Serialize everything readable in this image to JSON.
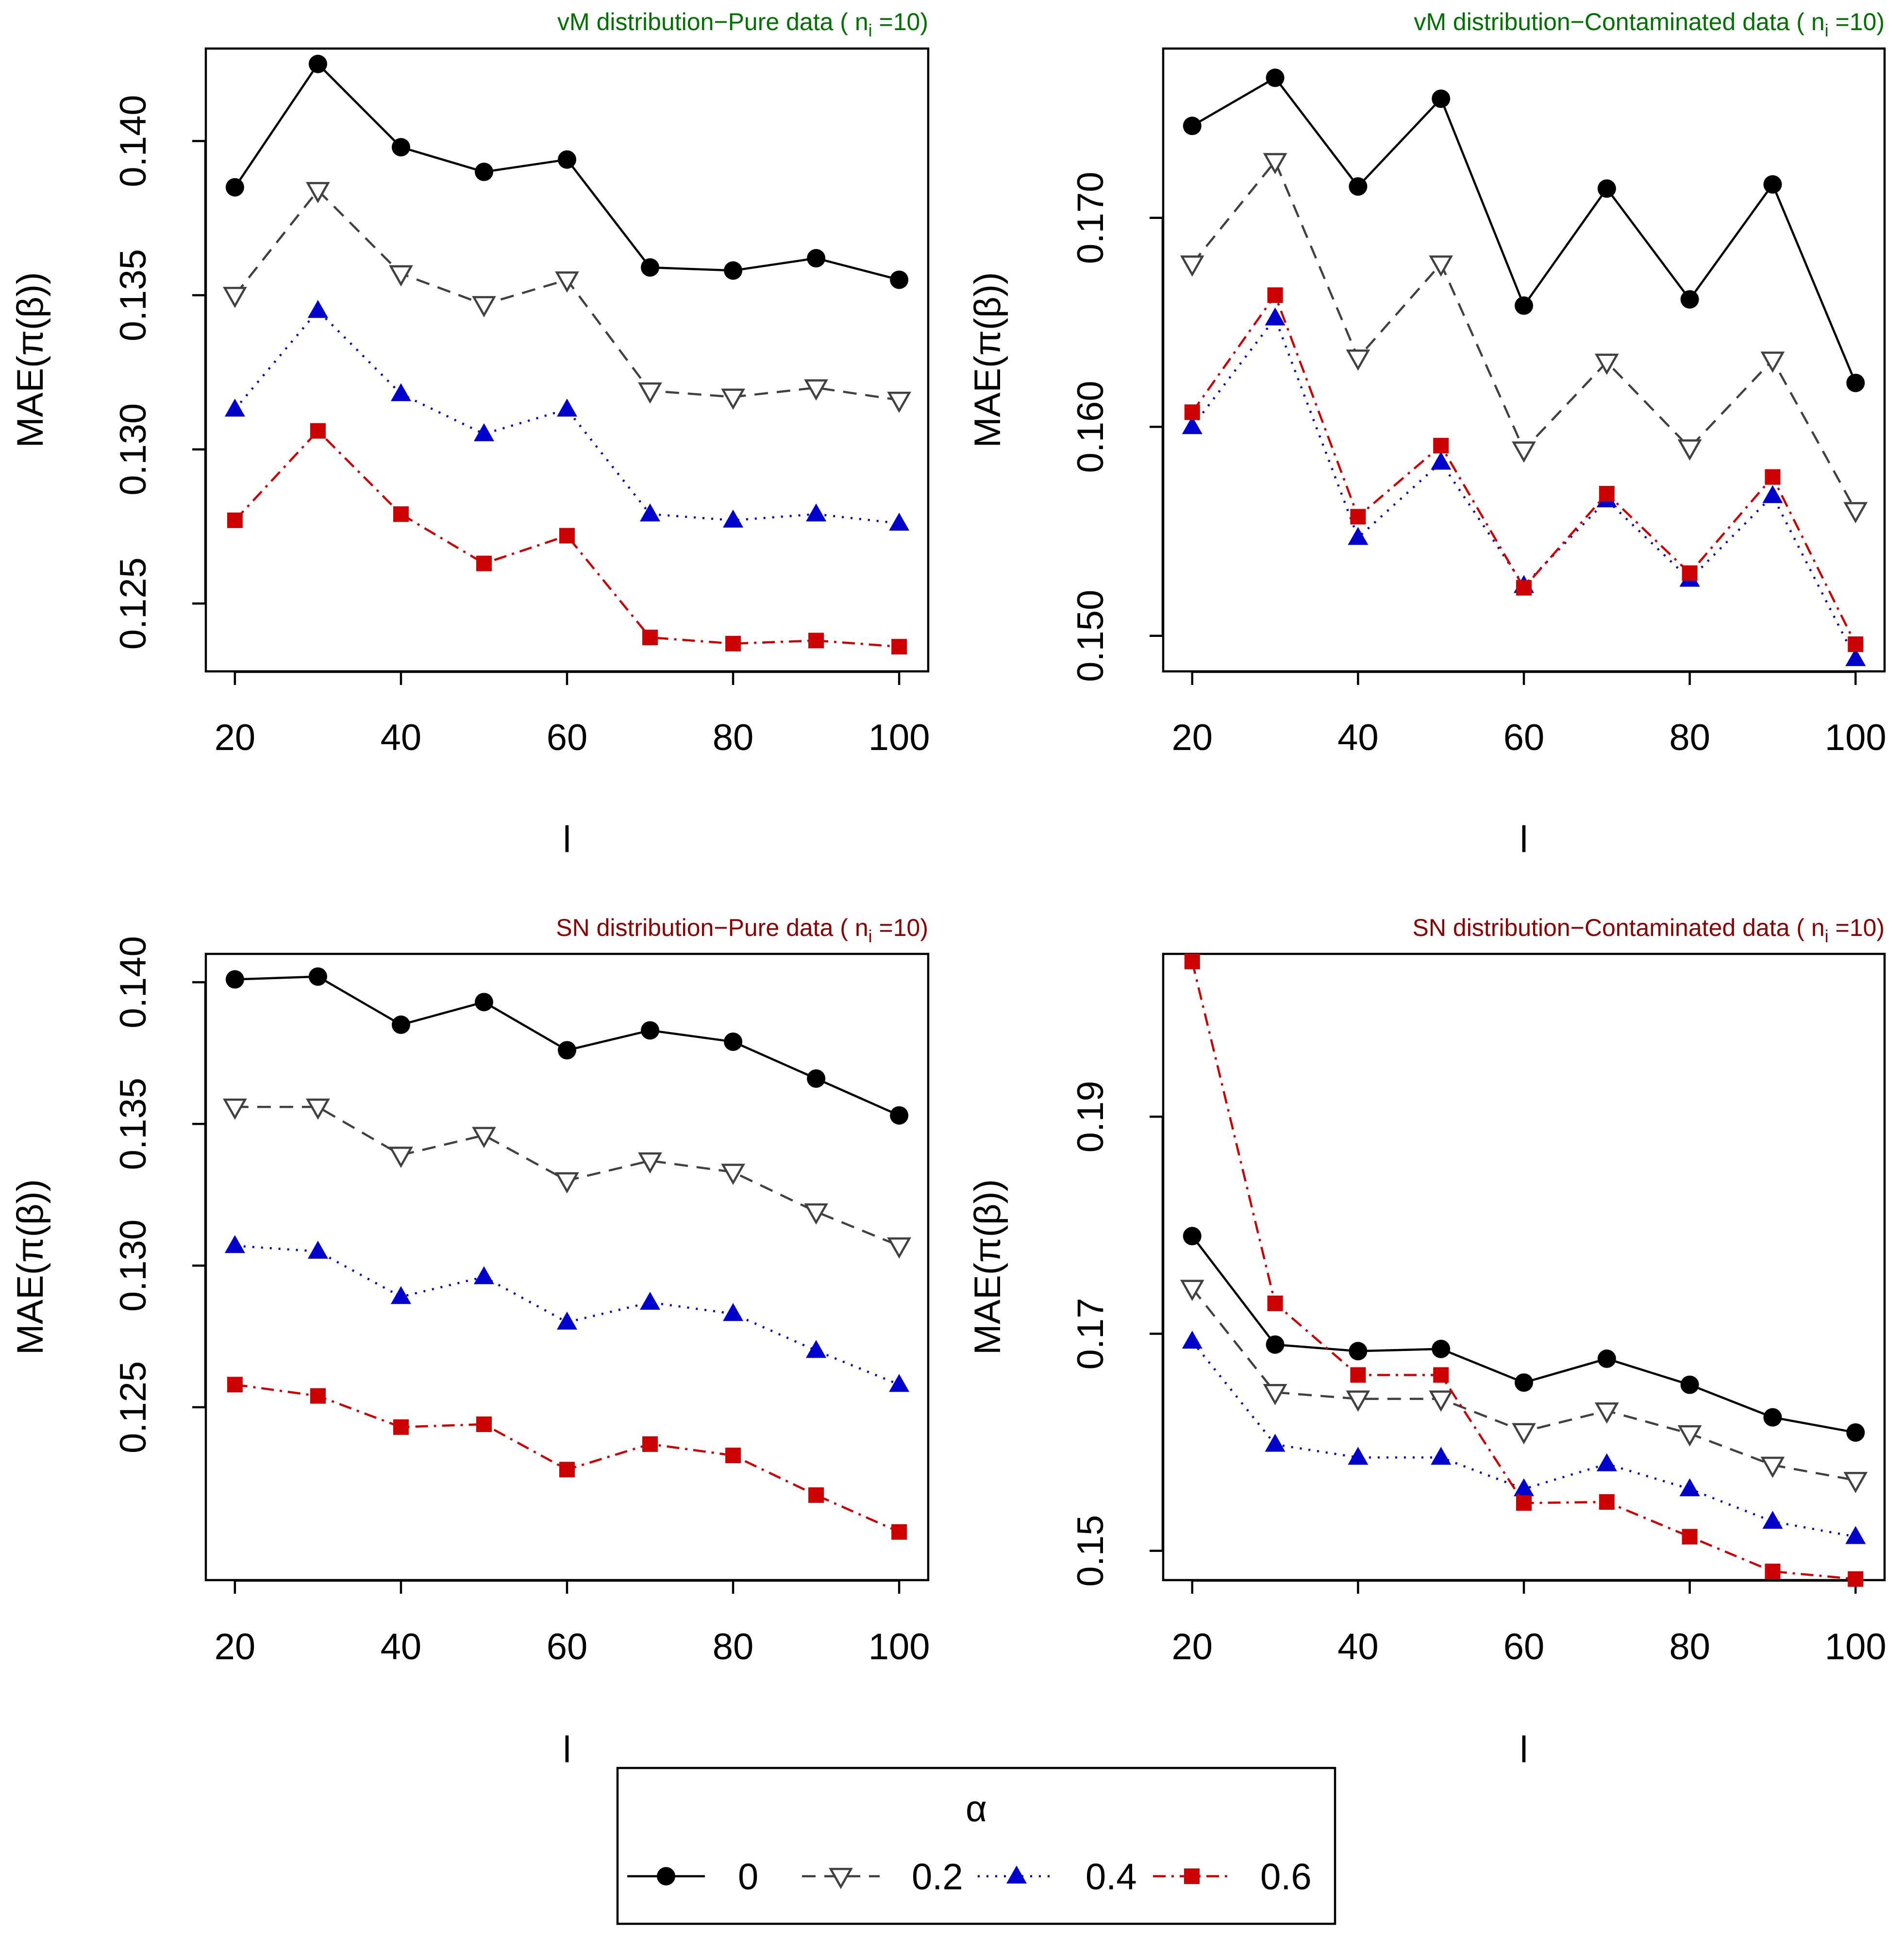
{
  "colors": {
    "alpha_0": "#000000",
    "alpha_0.2": "#404040",
    "alpha_0.4": "#0000CC",
    "alpha_0.6": "#CC0000",
    "title_vm": "#007000",
    "title_sn": "#8B0000"
  },
  "chart_data": [
    {
      "type": "line",
      "title": "vM distribution−Pure data ( n",
      "title_sub": "i",
      "title_tail": " =10)",
      "title_color": "#007000",
      "xlabel": "l",
      "ylabel": "MAE(π(β))",
      "x": [
        20,
        30,
        40,
        50,
        60,
        70,
        80,
        90,
        100
      ],
      "xticks": [
        20,
        40,
        60,
        80,
        100
      ],
      "xlim": [
        16.5,
        103.5
      ],
      "ylim": [
        0.1228,
        0.143
      ],
      "yticks": [
        "0.125",
        "0.130",
        "0.135",
        "0.140"
      ],
      "series": [
        {
          "name": "0",
          "values": [
            0.1385,
            0.1425,
            0.1398,
            0.139,
            0.1394,
            0.1359,
            0.1358,
            0.1362,
            0.1355
          ]
        },
        {
          "name": "0.2",
          "values": [
            0.135,
            0.1384,
            0.1357,
            0.1347,
            0.1355,
            0.1319,
            0.1317,
            0.132,
            0.1316
          ]
        },
        {
          "name": "0.4",
          "values": [
            0.1313,
            0.1345,
            0.1318,
            0.1305,
            0.1313,
            0.1279,
            0.1277,
            0.1279,
            0.1276
          ]
        },
        {
          "name": "0.6",
          "values": [
            0.1277,
            0.1306,
            0.1279,
            0.1263,
            0.1272,
            0.1239,
            0.1237,
            0.1238,
            0.1236
          ]
        }
      ]
    },
    {
      "type": "line",
      "title": "vM distribution−Contaminated data ( n",
      "title_sub": "i",
      "title_tail": " =10)",
      "title_color": "#007000",
      "xlabel": "l",
      "ylabel": "MAE(π(β))",
      "x": [
        20,
        30,
        40,
        50,
        60,
        70,
        80,
        90,
        100
      ],
      "xticks": [
        20,
        40,
        60,
        80,
        100
      ],
      "xlim": [
        16.5,
        103.5
      ],
      "ylim": [
        0.1483,
        0.1781
      ],
      "yticks": [
        "0.150",
        "0.160",
        "0.170"
      ],
      "series": [
        {
          "name": "0",
          "values": [
            0.1744,
            0.1767,
            0.1715,
            0.1757,
            0.1658,
            0.1714,
            0.1661,
            0.1716,
            0.1621
          ]
        },
        {
          "name": "0.2",
          "values": [
            0.1678,
            0.1727,
            0.1633,
            0.1678,
            0.1589,
            0.1631,
            0.159,
            0.1632,
            0.156
          ]
        },
        {
          "name": "0.4",
          "values": [
            0.16,
            0.1652,
            0.1547,
            0.1583,
            0.1524,
            0.1565,
            0.1527,
            0.1567,
            0.1489
          ]
        },
        {
          "name": "0.6",
          "values": [
            0.1607,
            0.1663,
            0.1557,
            0.1591,
            0.1523,
            0.1568,
            0.153,
            0.1576,
            0.1496
          ]
        }
      ]
    },
    {
      "type": "line",
      "title": "SN distribution−Pure data ( n",
      "title_sub": "i",
      "title_tail": " =10)",
      "title_color": "#8B0000",
      "xlabel": "l",
      "ylabel": "MAE(π(β))",
      "x": [
        20,
        30,
        40,
        50,
        60,
        70,
        80,
        90,
        100
      ],
      "xticks": [
        20,
        40,
        60,
        80,
        100
      ],
      "xlim": [
        16.5,
        103.5
      ],
      "ylim": [
        0.1189,
        0.141
      ],
      "yticks": [
        "0.125",
        "0.130",
        "0.135",
        "0.140"
      ],
      "series": [
        {
          "name": "0",
          "values": [
            0.1401,
            0.1402,
            0.1385,
            0.1393,
            0.1376,
            0.1383,
            0.1379,
            0.1366,
            0.1353
          ]
        },
        {
          "name": "0.2",
          "values": [
            0.1356,
            0.1356,
            0.1339,
            0.1346,
            0.133,
            0.1337,
            0.1333,
            0.1319,
            0.1307
          ]
        },
        {
          "name": "0.4",
          "values": [
            0.1307,
            0.1305,
            0.1289,
            0.1296,
            0.128,
            0.1287,
            0.1283,
            0.127,
            0.1258
          ]
        },
        {
          "name": "0.6",
          "values": [
            0.1258,
            0.1254,
            0.1243,
            0.1244,
            0.1228,
            0.1237,
            0.1233,
            0.1219,
            0.1206
          ]
        }
      ]
    },
    {
      "type": "line",
      "title": "SN distribution−Contaminated data ( n",
      "title_sub": "i",
      "title_tail": " =10)",
      "title_color": "#8B0000",
      "xlabel": "l",
      "ylabel": "MAE(π(β))",
      "x": [
        20,
        30,
        40,
        50,
        60,
        70,
        80,
        90,
        100
      ],
      "xticks": [
        20,
        40,
        60,
        80,
        100
      ],
      "xlim": [
        16.5,
        103.5
      ],
      "ylim": [
        0.1473,
        0.205
      ],
      "yticks": [
        "0.15",
        "0.17",
        "0.19"
      ],
      "series": [
        {
          "name": "0",
          "values": [
            0.179,
            0.169,
            0.1684,
            0.1686,
            0.1655,
            0.1677,
            0.1653,
            0.1623,
            0.1609
          ]
        },
        {
          "name": "0.2",
          "values": [
            0.1742,
            0.1646,
            0.164,
            0.164,
            0.161,
            0.1629,
            0.1608,
            0.1579,
            0.1565
          ]
        },
        {
          "name": "0.4",
          "values": [
            0.1693,
            0.1598,
            0.1586,
            0.1586,
            0.1557,
            0.158,
            0.1557,
            0.1527,
            0.1513
          ]
        },
        {
          "name": "0.6",
          "values": [
            0.2043,
            0.1728,
            0.1662,
            0.1662,
            0.1544,
            0.1545,
            0.1513,
            0.1481,
            0.1474
          ]
        }
      ]
    }
  ],
  "legend": {
    "title": "α",
    "entries": [
      "0",
      "0.2",
      "0.4",
      "0.6"
    ]
  }
}
